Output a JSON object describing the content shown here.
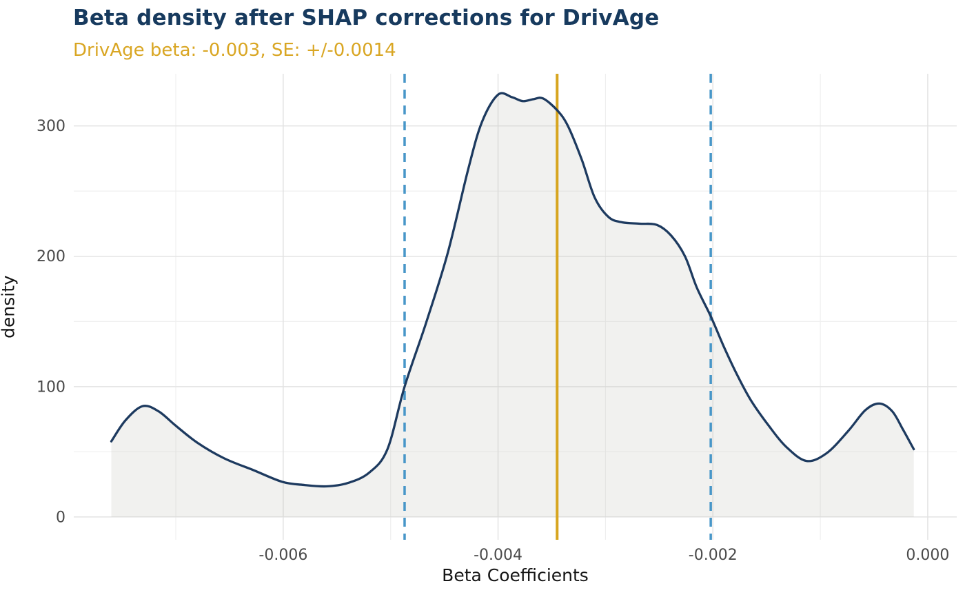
{
  "chart_data": {
    "type": "area",
    "title": "Beta density after SHAP corrections for DrivAge",
    "subtitle": "DrivAge beta: -0.003, SE: +/-0.0014",
    "xlabel": "Beta Coefficients",
    "ylabel": "density",
    "x_range": [
      -0.00795,
      0.00027
    ],
    "y_range": [
      -17.5,
      340
    ],
    "grid": true,
    "legend": false,
    "x_ticks_major": [
      {
        "value": -0.006,
        "label": "-0.006"
      },
      {
        "value": -0.004,
        "label": "-0.004"
      },
      {
        "value": -0.002,
        "label": "-0.002"
      },
      {
        "value": 0.0,
        "label": "0.000"
      }
    ],
    "x_ticks_minor": [
      -0.007,
      -0.005,
      -0.003,
      -0.001
    ],
    "y_ticks_major": [
      {
        "value": 0,
        "label": "0"
      },
      {
        "value": 100,
        "label": "100"
      },
      {
        "value": 200,
        "label": "200"
      },
      {
        "value": 300,
        "label": "300"
      }
    ],
    "y_ticks_minor": [
      50,
      150,
      250
    ],
    "series": [
      {
        "name": "beta-density",
        "x": [
          -0.0076,
          -0.00747,
          -0.00731,
          -0.00716,
          -0.007,
          -0.0068,
          -0.00655,
          -0.00628,
          -0.00601,
          -0.0058,
          -0.0056,
          -0.0054,
          -0.0052,
          -0.00503,
          -0.00487,
          -0.00467,
          -0.00447,
          -0.00428,
          -0.00415,
          -0.004,
          -0.00387,
          -0.00377,
          -0.00367,
          -0.00358,
          -0.00345,
          -0.00335,
          -0.00322,
          -0.0031,
          -0.00297,
          -0.00284,
          -0.00268,
          -0.00252,
          -0.00239,
          -0.00226,
          -0.00215,
          -0.00202,
          -0.0019,
          -0.00178,
          -0.00165,
          -0.00148,
          -0.00132,
          -0.00113,
          -0.00094,
          -0.00074,
          -0.00058,
          -0.00045,
          -0.00033,
          -0.00023,
          -0.00013
        ],
        "y": [
          58,
          74,
          85,
          81,
          70,
          57,
          45,
          36,
          27,
          24.5,
          23.5,
          26,
          34,
          52,
          100,
          149,
          202,
          266,
          303,
          324,
          322,
          319,
          320.5,
          321,
          312,
          300,
          274,
          245,
          230,
          226,
          225,
          224,
          216,
          200,
          176,
          154,
          131,
          110,
          90,
          70,
          54,
          43,
          49,
          66,
          82,
          87,
          81,
          67,
          52
        ]
      }
    ],
    "vlines": [
      {
        "name": "beta-mean-line",
        "x": -0.00345,
        "style": "solid",
        "color_key": "beta_line",
        "width": 4
      },
      {
        "name": "se-lower-line",
        "x": -0.00487,
        "style": "dashed",
        "color_key": "se_line",
        "width": 3.5
      },
      {
        "name": "se-upper-line",
        "x": -0.00202,
        "style": "dashed",
        "color_key": "se_line",
        "width": 3.5
      }
    ],
    "colors": {
      "title": "#173a5e",
      "subtitle": "#d9a623",
      "curve": "#1d3a5f",
      "fill": "rgba(190,190,183,0.22)",
      "beta_line": "#d7a51f",
      "se_line": "#4796c8",
      "grid_major": "#e3e3e3",
      "grid_minor": "#eeeeee",
      "tick_label": "#4a4a4a",
      "axis_title": "#151515"
    }
  }
}
